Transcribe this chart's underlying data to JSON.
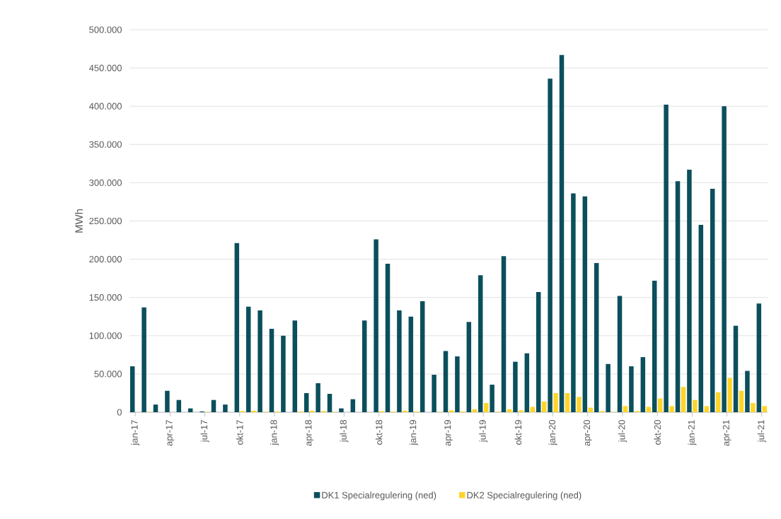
{
  "chart_data": {
    "type": "bar",
    "ylabel": "MWh",
    "categories": [
      "jan-17",
      null,
      null,
      "apr-17",
      null,
      null,
      "jul-17",
      null,
      null,
      "okt-17",
      null,
      null,
      "jan-18",
      null,
      null,
      "apr-18",
      null,
      null,
      "jul-18",
      null,
      null,
      "okt-18",
      null,
      null,
      "jan-19",
      null,
      null,
      "apr-19",
      null,
      null,
      "jul-19",
      null,
      null,
      "okt-19",
      null,
      null,
      "jan-20",
      null,
      null,
      "apr-20",
      null,
      null,
      "jul-20",
      null,
      null,
      "okt-20",
      null,
      null,
      "jan-21",
      null,
      null,
      "apr-21",
      null,
      null,
      "jul-21"
    ],
    "series": [
      {
        "name": "DK1 Specialregulering (ned)",
        "color": "#0b4f5c",
        "values": [
          60000,
          137000,
          10000,
          28000,
          16000,
          5000,
          1000,
          16000,
          10000,
          221000,
          138000,
          133000,
          109000,
          100000,
          120000,
          25000,
          38000,
          24000,
          5000,
          17000,
          120000,
          226000,
          194000,
          133000,
          125000,
          145000,
          49000,
          80000,
          73000,
          118000,
          179000,
          36000,
          204000,
          66000,
          77000,
          157000,
          436000,
          467000,
          286000,
          282000,
          195000,
          63000,
          152000,
          60000,
          72000,
          172000,
          402000,
          302000,
          317000,
          245000,
          292000,
          400000,
          113000,
          54000,
          142000
        ]
      },
      {
        "name": "DK2 Specialregulering (ned)",
        "color": "#ffd42a",
        "values": [
          0,
          500,
          0,
          0,
          0,
          0,
          500,
          0,
          0,
          1500,
          2000,
          500,
          1000,
          0,
          1000,
          2000,
          1500,
          500,
          0,
          0,
          0,
          1500,
          1000,
          2000,
          1000,
          0,
          500,
          2500,
          1000,
          4000,
          12000,
          500,
          4000,
          2500,
          7000,
          14000,
          25000,
          25000,
          20000,
          6000,
          1500,
          500,
          8000,
          1500,
          7000,
          18000,
          8000,
          33000,
          16000,
          8000,
          26000,
          45000,
          28000,
          12000,
          8000
        ]
      }
    ],
    "ylim": [
      0,
      500000
    ],
    "yticks": [
      {
        "value": 0,
        "label": "0"
      },
      {
        "value": 50000,
        "label": "50.000"
      },
      {
        "value": 100000,
        "label": "100.000"
      },
      {
        "value": 150000,
        "label": "150.000"
      },
      {
        "value": 200000,
        "label": "200.000"
      },
      {
        "value": 250000,
        "label": "250.000"
      },
      {
        "value": 300000,
        "label": "300.000"
      },
      {
        "value": 350000,
        "label": "350.000"
      },
      {
        "value": 400000,
        "label": "400.000"
      },
      {
        "value": 450000,
        "label": "450.000"
      },
      {
        "value": 500000,
        "label": "500.000"
      }
    ],
    "grid": "y",
    "legend": "bottom"
  }
}
